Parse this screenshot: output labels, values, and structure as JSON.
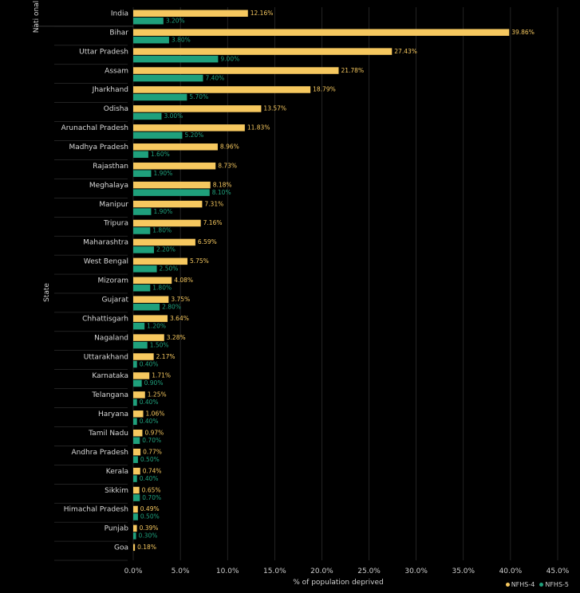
{
  "colors": {
    "nfhs4": "#f6c85f",
    "nfhs5": "#1fa07c",
    "grid": "#3a3a3a",
    "background": "#000000"
  },
  "chart_data": {
    "type": "bar",
    "orientation": "horizontal",
    "xlabel": "% of population deprived",
    "ylabel": "State",
    "group_labels": [
      "Nati onal"
    ],
    "xlim": [
      0,
      45
    ],
    "x_ticks": [
      "0.0%",
      "5.0%",
      "10.0%",
      "15.0%",
      "20.0%",
      "25.0%",
      "30.0%",
      "35.0%",
      "40.0%",
      "45.0%"
    ],
    "grid": true,
    "legend_position": "bottom-right",
    "categories": [
      "India",
      "Bihar",
      "Uttar Pradesh",
      "Assam",
      "Jharkhand",
      "Odisha",
      "Arunachal Pradesh",
      "Madhya Pradesh",
      "Rajasthan",
      "Meghalaya",
      "Manipur",
      "Tripura",
      "Maharashtra",
      "West Bengal",
      "Mizoram",
      "Gujarat",
      "Chhattisgarh",
      "Nagaland",
      "Uttarakhand",
      "Karnataka",
      "Telangana",
      "Haryana",
      "Tamil Nadu",
      "Andhra Pradesh",
      "Kerala",
      "Sikkim",
      "Himachal Pradesh",
      "Punjab",
      "Goa"
    ],
    "series": [
      {
        "name": "NFHS-4",
        "values": [
          12.16,
          39.86,
          27.43,
          21.78,
          18.79,
          13.57,
          11.83,
          8.96,
          8.73,
          8.18,
          7.31,
          7.16,
          6.59,
          5.75,
          4.08,
          3.75,
          3.64,
          3.28,
          2.17,
          1.71,
          1.25,
          1.06,
          0.97,
          0.77,
          0.74,
          0.65,
          0.49,
          0.39,
          0.18
        ],
        "labels": [
          "12.16%",
          "39.86%",
          "27.43%",
          "21.78%",
          "18.79%",
          "13.57%",
          "11.83%",
          "8.96%",
          "8.73%",
          "8.18%",
          "7.31%",
          "7.16%",
          "6.59%",
          "5.75%",
          "4.08%",
          "3.75%",
          "3.64%",
          "3.28%",
          "2.17%",
          "1.71%",
          "1.25%",
          "1.06%",
          "0.97%",
          "0.77%",
          "0.74%",
          "0.65%",
          "0.49%",
          "0.39%",
          "0.18%"
        ]
      },
      {
        "name": "NFHS-5",
        "values": [
          3.2,
          3.8,
          9.0,
          7.4,
          5.7,
          3.0,
          5.2,
          1.6,
          1.9,
          8.1,
          1.9,
          1.8,
          2.2,
          2.5,
          1.8,
          2.8,
          1.2,
          1.5,
          0.4,
          0.9,
          0.4,
          0.4,
          0.7,
          0.5,
          0.4,
          0.7,
          0.5,
          0.3,
          null
        ],
        "labels": [
          "3.20%",
          "3.80%",
          "9.00%",
          "7.40%",
          "5.70%",
          "3.00%",
          "5.20%",
          "1.60%",
          "1.90%",
          "8.10%",
          "1.90%",
          "1.80%",
          "2.20%",
          "2.50%",
          "1.80%",
          "2.80%",
          "1.20%",
          "1.50%",
          "0.40%",
          "0.90%",
          "0.40%",
          "0.40%",
          "0.70%",
          "0.50%",
          "0.40%",
          "0.70%",
          "0.50%",
          "0.30%",
          null
        ]
      }
    ]
  }
}
